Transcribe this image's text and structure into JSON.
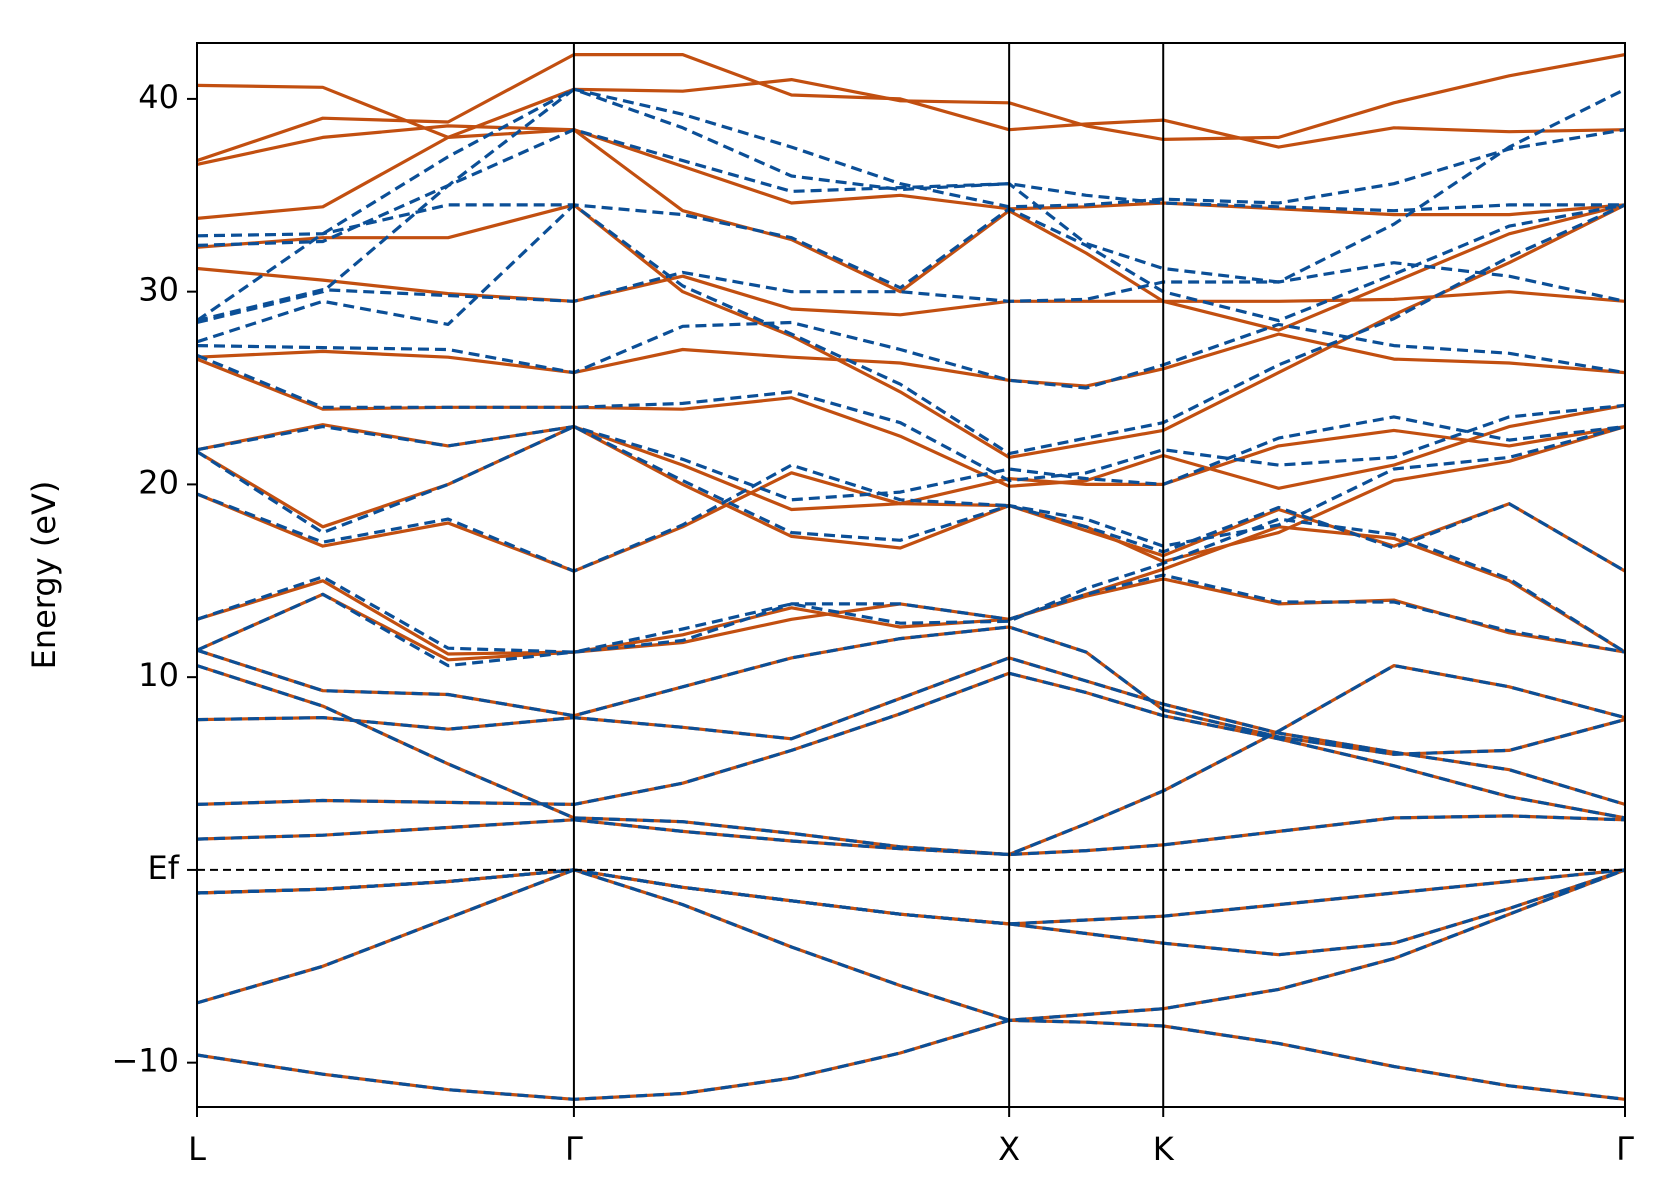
{
  "chart_data": {
    "type": "line",
    "ylabel": "Energy (eV)",
    "x": [
      0,
      0.289,
      0.577,
      0.866,
      1.116,
      1.366,
      1.616,
      1.866,
      2.043,
      2.22,
      2.485,
      2.75,
      3.015,
      3.281
    ],
    "xlim": [
      0,
      3.281
    ],
    "xticks": [
      {
        "value": 0,
        "label": "L"
      },
      {
        "value": 0.866,
        "label": "Γ"
      },
      {
        "value": 1.866,
        "label": "X"
      },
      {
        "value": 2.22,
        "label": "K"
      },
      {
        "value": 3.281,
        "label": "Γ"
      }
    ],
    "ylim": [
      -12.3,
      42.9
    ],
    "yticks": [
      {
        "value": -10,
        "label": "−10"
      },
      {
        "value": 0,
        "label": "Ef"
      },
      10,
      20,
      30,
      40
    ],
    "hline": 0,
    "series": [
      {
        "color": "#c24f10",
        "linestyle": "solid",
        "values": [
          -9.6,
          -10.6,
          -11.4,
          -11.9,
          -11.6,
          -10.8,
          -9.5,
          -7.8,
          -7.9,
          -8.1,
          -9.0,
          -10.2,
          -11.2,
          -11.9
        ]
      },
      {
        "color": "#c24f10",
        "linestyle": "solid",
        "values": [
          -6.9,
          -5.0,
          -2.5,
          0,
          -1.8,
          -4.0,
          -6.0,
          -7.8,
          -7.5,
          -7.2,
          -6.2,
          -4.6,
          -2.3,
          0
        ]
      },
      {
        "color": "#c24f10",
        "linestyle": "solid",
        "values": [
          -1.2,
          -1.0,
          -0.6,
          0,
          -0.9,
          -1.6,
          -2.3,
          -2.8,
          -2.6,
          -2.4,
          -1.8,
          -1.2,
          -0.6,
          0
        ]
      },
      {
        "color": "#c24f10",
        "linestyle": "solid",
        "values": [
          -1.2,
          -1.0,
          -0.6,
          0,
          -0.9,
          -1.6,
          -2.3,
          -2.8,
          -3.3,
          -3.8,
          -4.4,
          -3.8,
          -2.0,
          0
        ]
      },
      {
        "color": "#c24f10",
        "linestyle": "solid",
        "values": [
          1.6,
          1.8,
          2.2,
          2.6,
          2.0,
          1.5,
          1.1,
          0.8,
          1.0,
          1.3,
          2.0,
          2.7,
          2.8,
          2.6
        ]
      },
      {
        "color": "#c24f10",
        "linestyle": "solid",
        "values": [
          3.4,
          3.6,
          3.5,
          3.4,
          4.5,
          6.2,
          8.1,
          10.2,
          9.2,
          8.0,
          6.8,
          5.4,
          3.8,
          2.7
        ]
      },
      {
        "color": "#c24f10",
        "linestyle": "solid",
        "values": [
          10.6,
          8.5,
          5.5,
          2.7,
          2.5,
          1.9,
          1.2,
          0.8,
          2.4,
          4.1,
          7.2,
          10.6,
          9.5,
          7.9
        ]
      },
      {
        "color": "#c24f10",
        "linestyle": "solid",
        "values": [
          7.8,
          7.9,
          7.3,
          7.9,
          7.4,
          6.8,
          8.9,
          11.0,
          9.8,
          8.6,
          7.1,
          6.1,
          5.2,
          3.4
        ]
      },
      {
        "color": "#c24f10",
        "linestyle": "solid",
        "values": [
          11.4,
          9.3,
          9.1,
          8.0,
          9.5,
          11.0,
          12.0,
          12.6,
          11.3,
          8.3,
          6.9,
          6.0,
          6.2,
          7.8
        ]
      },
      {
        "color": "#c24f10",
        "linestyle": "solid",
        "values": [
          11.4,
          14.3,
          10.9,
          11.3,
          11.8,
          13.0,
          13.8,
          13.0,
          14.2,
          15.1,
          13.8,
          14.0,
          12.3,
          11.3
        ]
      },
      {
        "color": "#c24f10",
        "linestyle": "solid",
        "values": [
          13.0,
          15.0,
          11.2,
          11.3,
          12.2,
          13.6,
          12.6,
          13.0,
          14.3,
          15.6,
          17.8,
          17.2,
          15.0,
          11.3
        ]
      },
      {
        "color": "#c24f10",
        "linestyle": "solid",
        "values": [
          19.5,
          16.8,
          18.0,
          15.5,
          17.8,
          20.6,
          19.0,
          18.9,
          17.6,
          16.3,
          18.7,
          16.8,
          19.0,
          15.5
        ]
      },
      {
        "color": "#c24f10",
        "linestyle": "solid",
        "values": [
          21.7,
          17.8,
          20.0,
          23.0,
          20.0,
          17.3,
          16.7,
          18.9,
          17.8,
          16.0,
          17.5,
          20.2,
          21.2,
          23.0
        ]
      },
      {
        "color": "#c24f10",
        "linestyle": "solid",
        "values": [
          21.8,
          23.1,
          22.0,
          23.0,
          21.0,
          18.7,
          19.0,
          20.3,
          20.0,
          20.0,
          22.0,
          22.8,
          22.0,
          23.0
        ]
      },
      {
        "color": "#c24f10",
        "linestyle": "solid",
        "values": [
          26.5,
          23.9,
          24.0,
          24.0,
          23.9,
          24.5,
          22.5,
          19.9,
          20.2,
          21.5,
          19.8,
          21.0,
          23.0,
          24.1
        ]
      },
      {
        "color": "#c24f10",
        "linestyle": "solid",
        "values": [
          26.6,
          26.9,
          26.6,
          25.8,
          27.0,
          26.6,
          26.3,
          25.4,
          25.1,
          26.0,
          27.8,
          26.5,
          26.3,
          25.8
        ]
      },
      {
        "color": "#c24f10",
        "linestyle": "solid",
        "values": [
          31.2,
          30.6,
          29.9,
          29.5,
          30.8,
          29.1,
          28.8,
          29.5,
          29.5,
          29.5,
          29.5,
          29.6,
          30.0,
          29.5
        ]
      },
      {
        "color": "#c24f10",
        "linestyle": "solid",
        "values": [
          32.3,
          32.8,
          32.8,
          34.5,
          30.0,
          27.7,
          24.8,
          21.4,
          22.1,
          22.8,
          25.8,
          28.8,
          31.5,
          34.5
        ]
      },
      {
        "color": "#c24f10",
        "linestyle": "solid",
        "values": [
          33.8,
          34.4,
          38.0,
          38.4,
          34.2,
          32.7,
          30.0,
          34.2,
          32.0,
          29.5,
          28.0,
          30.5,
          33.0,
          34.5
        ]
      },
      {
        "color": "#c24f10",
        "linestyle": "solid",
        "values": [
          36.6,
          38.0,
          38.6,
          38.4,
          36.5,
          34.6,
          35.0,
          34.3,
          34.4,
          34.6,
          34.3,
          34.0,
          34.0,
          34.5
        ]
      },
      {
        "color": "#c24f10",
        "linestyle": "solid",
        "values": [
          36.8,
          39.0,
          38.8,
          42.3,
          42.3,
          40.2,
          40.0,
          38.4,
          38.7,
          38.9,
          37.5,
          38.5,
          38.3,
          38.4
        ]
      },
      {
        "color": "#c24f10",
        "linestyle": "solid",
        "values": [
          40.7,
          40.6,
          38.0,
          40.5,
          40.4,
          41.0,
          39.9,
          39.8,
          38.6,
          37.9,
          38.0,
          39.8,
          41.2,
          42.3
        ]
      },
      {
        "color": "#0b4f97",
        "linestyle": "dashed",
        "values": [
          -9.6,
          -10.6,
          -11.4,
          -11.9,
          -11.6,
          -10.8,
          -9.5,
          -7.8,
          -7.9,
          -8.1,
          -9.0,
          -10.2,
          -11.2,
          -11.9
        ]
      },
      {
        "color": "#0b4f97",
        "linestyle": "dashed",
        "values": [
          -6.9,
          -5.0,
          -2.5,
          0,
          -1.8,
          -4.0,
          -6.0,
          -7.8,
          -7.5,
          -7.2,
          -6.2,
          -4.6,
          -2.3,
          0
        ]
      },
      {
        "color": "#0b4f97",
        "linestyle": "dashed",
        "values": [
          -1.2,
          -1.0,
          -0.6,
          0,
          -0.9,
          -1.6,
          -2.3,
          -2.8,
          -2.6,
          -2.4,
          -1.8,
          -1.2,
          -0.6,
          0
        ]
      },
      {
        "color": "#0b4f97",
        "linestyle": "dashed",
        "values": [
          -1.2,
          -1.0,
          -0.6,
          0,
          -0.9,
          -1.6,
          -2.3,
          -2.8,
          -3.3,
          -3.8,
          -4.4,
          -3.8,
          -2.0,
          0
        ]
      },
      {
        "color": "#0b4f97",
        "linestyle": "dashed",
        "values": [
          1.6,
          1.8,
          2.2,
          2.6,
          2.0,
          1.5,
          1.1,
          0.8,
          1.0,
          1.3,
          2.0,
          2.7,
          2.8,
          2.6
        ]
      },
      {
        "color": "#0b4f97",
        "linestyle": "dashed",
        "values": [
          3.4,
          3.6,
          3.5,
          3.4,
          4.5,
          6.2,
          8.1,
          10.2,
          9.2,
          8.0,
          6.8,
          5.4,
          3.8,
          2.7
        ]
      },
      {
        "color": "#0b4f97",
        "linestyle": "dashed",
        "values": [
          10.6,
          8.5,
          5.5,
          2.7,
          2.5,
          1.9,
          1.2,
          0.8,
          2.4,
          4.1,
          7.2,
          10.6,
          9.5,
          7.9
        ]
      },
      {
        "color": "#0b4f97",
        "linestyle": "dashed",
        "values": [
          7.8,
          7.9,
          7.3,
          7.9,
          7.4,
          6.8,
          8.9,
          11.0,
          9.8,
          8.6,
          7.1,
          6.1,
          5.2,
          3.4
        ]
      },
      {
        "color": "#0b4f97",
        "linestyle": "dashed",
        "values": [
          11.4,
          9.3,
          9.1,
          8.0,
          9.5,
          11.0,
          12.0,
          12.6,
          11.3,
          8.3,
          6.9,
          6.0,
          6.2,
          7.8
        ]
      },
      {
        "color": "#0b4f97",
        "linestyle": "dashed",
        "values": [
          11.4,
          14.3,
          10.6,
          11.3,
          11.9,
          13.8,
          13.8,
          13.0,
          14.3,
          15.3,
          13.9,
          13.9,
          12.4,
          11.3
        ]
      },
      {
        "color": "#0b4f97",
        "linestyle": "dashed",
        "values": [
          13.0,
          15.2,
          11.5,
          11.3,
          12.5,
          13.8,
          12.8,
          12.9,
          14.6,
          15.9,
          18.2,
          17.4,
          15.1,
          11.3
        ]
      },
      {
        "color": "#0b4f97",
        "linestyle": "dashed",
        "values": [
          19.5,
          17.0,
          18.2,
          15.5,
          17.9,
          21.0,
          19.2,
          18.9,
          17.8,
          16.5,
          18.8,
          16.7,
          19.0,
          15.5
        ]
      },
      {
        "color": "#0b4f97",
        "linestyle": "dashed",
        "values": [
          21.7,
          17.5,
          20.0,
          23.0,
          20.2,
          17.5,
          17.1,
          18.9,
          18.2,
          16.8,
          17.9,
          20.8,
          21.4,
          23.0
        ]
      },
      {
        "color": "#0b4f97",
        "linestyle": "dashed",
        "values": [
          21.8,
          23.0,
          22.0,
          23.0,
          21.3,
          19.2,
          19.6,
          20.8,
          20.3,
          20.0,
          22.4,
          23.5,
          22.3,
          23.0
        ]
      },
      {
        "color": "#0b4f97",
        "linestyle": "dashed",
        "values": [
          26.7,
          24.0,
          24.0,
          24.0,
          24.2,
          24.8,
          23.2,
          20.2,
          20.6,
          21.8,
          21.0,
          21.4,
          23.5,
          24.1
        ]
      },
      {
        "color": "#0b4f97",
        "linestyle": "dashed",
        "values": [
          27.2,
          27.1,
          27.0,
          25.8,
          28.2,
          28.4,
          27.0,
          25.4,
          25.0,
          26.2,
          28.3,
          27.2,
          26.8,
          25.8
        ]
      },
      {
        "color": "#0b4f97",
        "linestyle": "dashed",
        "values": [
          28.5,
          30.1,
          29.8,
          29.5,
          31.0,
          30.0,
          30.0,
          29.5,
          29.6,
          30.5,
          30.5,
          31.5,
          30.8,
          29.5
        ]
      },
      {
        "color": "#0b4f97",
        "linestyle": "dashed",
        "values": [
          27.4,
          29.5,
          28.3,
          34.5,
          30.3,
          27.8,
          25.2,
          21.6,
          22.4,
          23.2,
          26.2,
          28.6,
          31.8,
          34.5
        ]
      },
      {
        "color": "#0b4f97",
        "linestyle": "dashed",
        "values": [
          32.9,
          33.0,
          34.5,
          34.5,
          34.0,
          32.8,
          30.2,
          34.3,
          32.4,
          30.0,
          28.5,
          30.9,
          33.4,
          34.5
        ]
      },
      {
        "color": "#0b4f97",
        "linestyle": "dashed",
        "values": [
          32.4,
          32.6,
          35.5,
          38.4,
          36.8,
          35.2,
          35.4,
          35.6,
          35.0,
          34.6,
          34.4,
          34.2,
          34.5,
          34.5
        ]
      },
      {
        "color": "#0b4f97",
        "linestyle": "dashed",
        "values": [
          28.5,
          33.0,
          37.0,
          40.5,
          39.2,
          37.5,
          35.6,
          34.4,
          34.5,
          34.8,
          34.6,
          35.6,
          37.4,
          38.4
        ]
      },
      {
        "color": "#0b4f97",
        "linestyle": "dashed",
        "values": [
          28.4,
          30.0,
          35.5,
          40.5,
          38.5,
          36.0,
          35.3,
          35.6,
          32.5,
          31.2,
          30.5,
          33.5,
          37.5,
          40.5
        ]
      }
    ]
  }
}
